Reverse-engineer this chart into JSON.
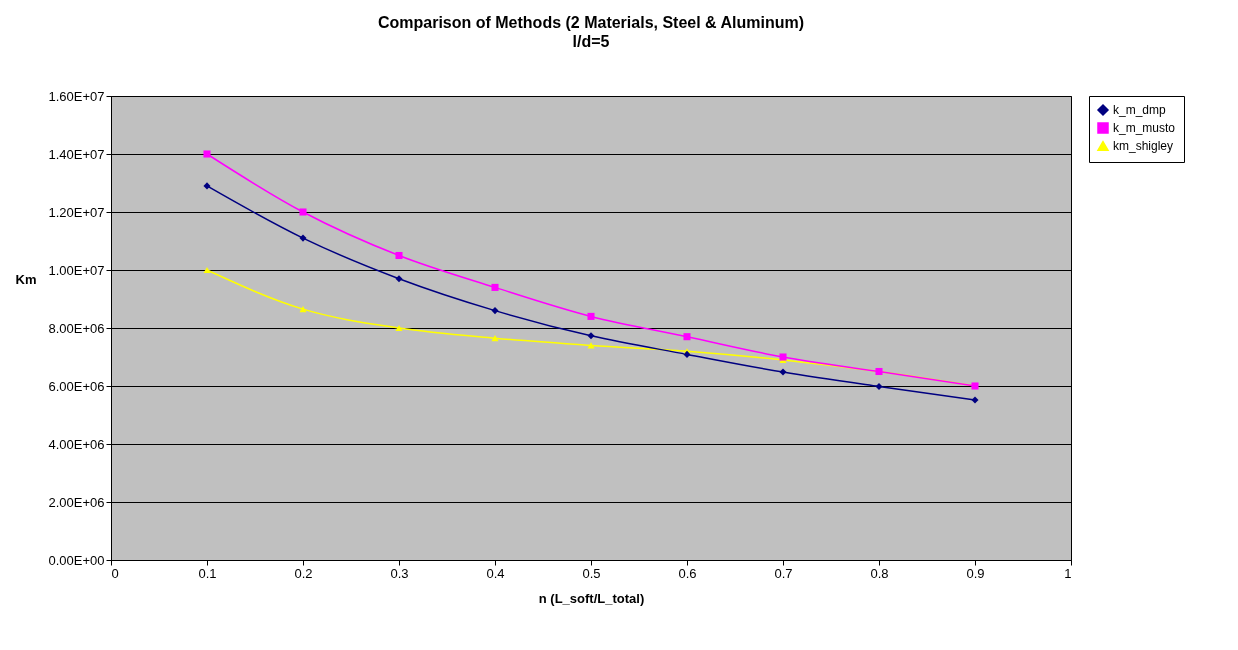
{
  "chart_data": {
    "type": "line",
    "title": "Comparison of Methods (2 Materials, Steel & Aluminum)",
    "subtitle": "l/d=5",
    "xlabel": "n (L_soft/L_total)",
    "ylabel": "Km",
    "x": [
      0.1,
      0.2,
      0.3,
      0.4,
      0.5,
      0.6,
      0.7,
      0.8,
      0.9
    ],
    "series": [
      {
        "name": "k_m_dmp",
        "color": "#000080",
        "marker": "diamond",
        "values": [
          12900000,
          11100000,
          9700000,
          8600000,
          7730000,
          7090000,
          6480000,
          5980000,
          5520000
        ]
      },
      {
        "name": "k_m_musto",
        "color": "#ff00ff",
        "marker": "square",
        "values": [
          14000000,
          12000000,
          10500000,
          9400000,
          8400000,
          7700000,
          7000000,
          6500000,
          6000000
        ]
      },
      {
        "name": "km_shigley",
        "color": "#ffff00",
        "marker": "triangle",
        "values": [
          10000000,
          8650000,
          8000000,
          7650000,
          7400000,
          7200000,
          6900000,
          6500000,
          6000000
        ]
      }
    ],
    "xlim": [
      0,
      1
    ],
    "xticks": [
      0,
      0.1,
      0.2,
      0.3,
      0.4,
      0.5,
      0.6,
      0.7,
      0.8,
      0.9,
      1
    ],
    "ylim": [
      0,
      16000000
    ],
    "yticks": [
      {
        "value": 0,
        "label": "0.00E+00"
      },
      {
        "value": 2000000,
        "label": "2.00E+06"
      },
      {
        "value": 4000000,
        "label": "4.00E+06"
      },
      {
        "value": 6000000,
        "label": "6.00E+06"
      },
      {
        "value": 8000000,
        "label": "8.00E+06"
      },
      {
        "value": 10000000,
        "label": "1.00E+07"
      },
      {
        "value": 12000000,
        "label": "1.20E+07"
      },
      {
        "value": 14000000,
        "label": "1.40E+07"
      },
      {
        "value": 16000000,
        "label": "1.60E+07"
      }
    ],
    "grid": "y",
    "legend": "right",
    "line_style": "solid"
  }
}
